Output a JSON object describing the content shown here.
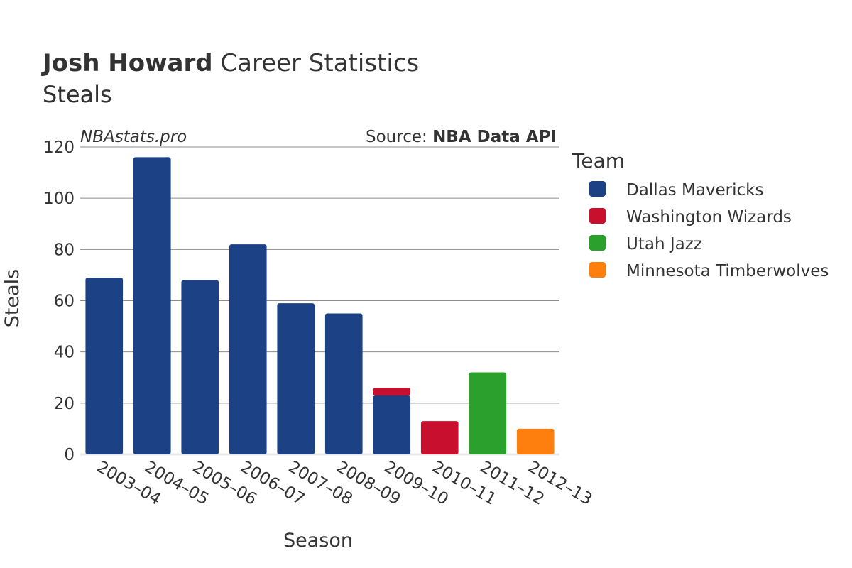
{
  "title": {
    "bold": "Josh Howard",
    "rest": " Career Statistics",
    "subtitle": "Steals"
  },
  "watermark": "NBAstats.pro",
  "source": {
    "prefix": "Source: ",
    "name": "NBA Data API"
  },
  "legend": {
    "title": "Team",
    "position": "right",
    "items": [
      {
        "label": "Dallas Mavericks",
        "color": "#1c4185"
      },
      {
        "label": "Washington Wizards",
        "color": "#c8102e"
      },
      {
        "label": "Utah Jazz",
        "color": "#2ca02c"
      },
      {
        "label": "Minnesota Timberwolves",
        "color": "#ff7f0e"
      }
    ]
  },
  "chart_data": {
    "type": "bar",
    "stacked": true,
    "xlabel": "Season",
    "ylabel": "Steals",
    "ylim": [
      0,
      120
    ],
    "yticks": [
      0,
      20,
      40,
      60,
      80,
      100,
      120
    ],
    "grid": true,
    "categories": [
      "2003–04",
      "2004–05",
      "2005–06",
      "2006–07",
      "2007–08",
      "2008–09",
      "2009–10",
      "2010–11",
      "2011–12",
      "2012–13"
    ],
    "series": [
      {
        "name": "Dallas Mavericks",
        "color": "#1c4185",
        "values": [
          69,
          116,
          68,
          82,
          59,
          55,
          23,
          0,
          0,
          0
        ]
      },
      {
        "name": "Washington Wizards",
        "color": "#c8102e",
        "values": [
          0,
          0,
          0,
          0,
          0,
          0,
          3,
          13,
          0,
          0
        ]
      },
      {
        "name": "Utah Jazz",
        "color": "#2ca02c",
        "values": [
          0,
          0,
          0,
          0,
          0,
          0,
          0,
          0,
          32,
          0
        ]
      },
      {
        "name": "Minnesota Timberwolves",
        "color": "#ff7f0e",
        "values": [
          0,
          0,
          0,
          0,
          0,
          0,
          0,
          0,
          0,
          10
        ]
      }
    ]
  }
}
